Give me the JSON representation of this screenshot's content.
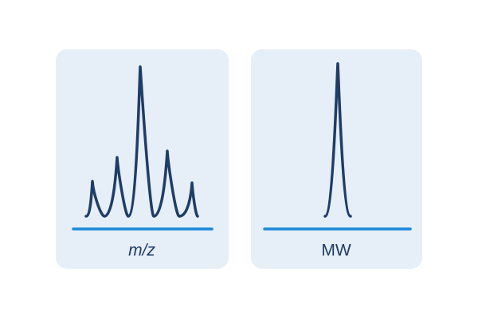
{
  "panels": [
    {
      "label": "m/z"
    },
    {
      "label": "MW"
    }
  ]
}
